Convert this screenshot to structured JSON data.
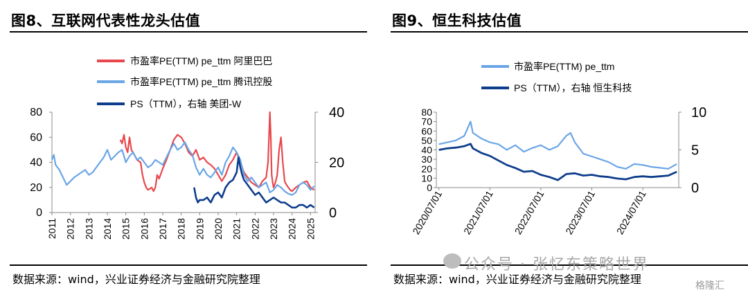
{
  "left": {
    "fig_title": "图8、互联网代表性龙头估值",
    "source": "数据来源：wind，兴业证券经济与金融研究院整理"
  },
  "right": {
    "fig_title": "图9、恒生科技估值",
    "source": "数据来源：wind，兴业证券经济与金融研究院整理"
  },
  "watermark": {
    "text": "公众号 · 张忆东策略世界",
    "logo": "格隆汇",
    "icon": "wechat-icon"
  },
  "chart_data": [
    {
      "type": "line",
      "title": "",
      "legend_placement": "top",
      "x_ticks": [
        "2011",
        "2012",
        "2013",
        "2014",
        "2015",
        "2016",
        "2017",
        "2018",
        "2019",
        "2020",
        "2021",
        "2022",
        "2023",
        "2024",
        "2025"
      ],
      "y_left": {
        "lim": [
          0,
          80
        ],
        "ticks": [
          0,
          20,
          40,
          60,
          80
        ]
      },
      "y_right": {
        "lim": [
          0,
          40
        ],
        "ticks": [
          0,
          20,
          40
        ]
      },
      "grid": false,
      "series": [
        {
          "name": "市盈率PE(TTM) pe_ttm 阿里巴巴",
          "axis": "left",
          "color": "#e8474c",
          "x": [
            2014.7,
            2014.8,
            2014.9,
            2015.0,
            2015.1,
            2015.2,
            2015.3,
            2015.5,
            2015.6,
            2015.8,
            2015.9,
            2016.0,
            2016.1,
            2016.2,
            2016.4,
            2016.5,
            2016.6,
            2016.7,
            2016.8,
            2017.0,
            2017.2,
            2017.4,
            2017.6,
            2017.8,
            2018.0,
            2018.2,
            2018.4,
            2018.6,
            2018.8,
            2019.0,
            2019.2,
            2019.4,
            2019.6,
            2019.8,
            2020.0,
            2020.2,
            2020.4,
            2020.6,
            2020.8,
            2021.0,
            2021.2,
            2021.4,
            2021.6,
            2021.8,
            2022.0,
            2022.2,
            2022.4,
            2022.6,
            2022.7,
            2022.8,
            2022.85,
            2022.9,
            2022.95,
            2023.0,
            2023.1,
            2023.2,
            2023.3,
            2023.4,
            2023.5,
            2023.6,
            2023.7,
            2023.8,
            2023.9,
            2024.0,
            2024.2,
            2024.4,
            2024.6,
            2024.8,
            2025.0,
            2025.2
          ],
          "values": [
            58,
            55,
            62,
            52,
            48,
            60,
            50,
            45,
            42,
            40,
            30,
            24,
            20,
            18,
            20,
            17,
            20,
            30,
            27,
            35,
            42,
            50,
            58,
            62,
            60,
            55,
            48,
            45,
            50,
            42,
            44,
            40,
            38,
            35,
            30,
            25,
            30,
            38,
            42,
            48,
            40,
            32,
            28,
            24,
            22,
            20,
            25,
            28,
            40,
            80,
            60,
            30,
            24,
            20,
            24,
            30,
            50,
            60,
            40,
            25,
            22,
            20,
            18,
            17,
            20,
            22,
            24,
            25,
            20,
            18
          ]
        },
        {
          "name": "市盈率PE(TTM) pe_ttm 腾讯控股",
          "axis": "left",
          "color": "#6aa5e6",
          "x": [
            2011.0,
            2011.1,
            2011.2,
            2011.4,
            2011.6,
            2011.8,
            2012.0,
            2012.2,
            2012.4,
            2012.6,
            2012.8,
            2013.0,
            2013.2,
            2013.4,
            2013.6,
            2013.8,
            2014.0,
            2014.2,
            2014.4,
            2014.6,
            2014.8,
            2015.0,
            2015.2,
            2015.4,
            2015.6,
            2015.8,
            2016.0,
            2016.2,
            2016.4,
            2016.6,
            2016.8,
            2017.0,
            2017.2,
            2017.4,
            2017.6,
            2017.8,
            2018.0,
            2018.2,
            2018.4,
            2018.6,
            2018.8,
            2019.0,
            2019.2,
            2019.4,
            2019.6,
            2019.8,
            2020.0,
            2020.2,
            2020.4,
            2020.6,
            2020.8,
            2021.0,
            2021.2,
            2021.4,
            2021.6,
            2021.8,
            2022.0,
            2022.2,
            2022.4,
            2022.6,
            2022.8,
            2023.0,
            2023.2,
            2023.4,
            2023.6,
            2023.8,
            2024.0,
            2024.2,
            2024.4,
            2024.6,
            2024.8,
            2025.0,
            2025.2
          ],
          "values": [
            42,
            46,
            38,
            34,
            28,
            22,
            25,
            28,
            30,
            32,
            34,
            30,
            32,
            36,
            40,
            44,
            50,
            42,
            45,
            48,
            50,
            40,
            45,
            48,
            42,
            44,
            40,
            36,
            38,
            42,
            40,
            38,
            44,
            50,
            55,
            50,
            52,
            56,
            50,
            46,
            36,
            30,
            35,
            30,
            28,
            32,
            36,
            30,
            40,
            45,
            52,
            48,
            42,
            30,
            25,
            28,
            24,
            20,
            22,
            24,
            16,
            18,
            22,
            20,
            17,
            15,
            14,
            16,
            22,
            24,
            22,
            18,
            21
          ]
        },
        {
          "name": "PS（TTM），右轴 美团-W",
          "axis": "right",
          "color": "#0e3d8c",
          "x": [
            2018.7,
            2018.8,
            2018.9,
            2019.0,
            2019.2,
            2019.4,
            2019.6,
            2019.8,
            2020.0,
            2020.2,
            2020.4,
            2020.6,
            2020.8,
            2021.0,
            2021.1,
            2021.2,
            2021.3,
            2021.4,
            2021.6,
            2021.8,
            2022.0,
            2022.2,
            2022.4,
            2022.6,
            2022.8,
            2023.0,
            2023.2,
            2023.4,
            2023.6,
            2023.8,
            2024.0,
            2024.2,
            2024.4,
            2024.6,
            2024.8,
            2025.0,
            2025.2
          ],
          "values": [
            10,
            6,
            4,
            5,
            5,
            6,
            4,
            7,
            8,
            6,
            10,
            12,
            13,
            16,
            22,
            18,
            15,
            13,
            11,
            9,
            7,
            8,
            6,
            4,
            5,
            6,
            5,
            4,
            4,
            3,
            2,
            2,
            3,
            3,
            2,
            3,
            2
          ]
        }
      ]
    },
    {
      "type": "line",
      "title": "",
      "legend_placement": "top",
      "x_ticks": [
        "2020/07/01",
        "2021/07/01",
        "2022/07/01",
        "2023/07/01",
        "2024/07/01"
      ],
      "y_left": {
        "lim": [
          0,
          80
        ],
        "ticks": [
          0,
          10,
          20,
          30,
          40,
          50,
          60,
          70,
          80
        ]
      },
      "y_right": {
        "lim": [
          0,
          10
        ],
        "ticks": [
          0,
          5,
          10
        ]
      },
      "grid": false,
      "series": [
        {
          "name": "市盈率PE(TTM) pe_ttm",
          "axis": "left",
          "color": "#6aa5e6",
          "x": [
            "2020-07-01",
            "2020-09-01",
            "2020-11-01",
            "2021-01-01",
            "2021-02-15",
            "2021-03-01",
            "2021-05-01",
            "2021-07-01",
            "2021-09-01",
            "2021-11-01",
            "2022-01-01",
            "2022-03-01",
            "2022-05-01",
            "2022-07-01",
            "2022-09-01",
            "2022-11-01",
            "2023-01-01",
            "2023-02-01",
            "2023-03-01",
            "2023-05-01",
            "2023-07-01",
            "2023-09-01",
            "2023-11-01",
            "2024-01-01",
            "2024-03-01",
            "2024-05-01",
            "2024-07-01",
            "2024-09-01",
            "2024-11-01",
            "2025-01-01",
            "2025-03-01"
          ],
          "values": [
            46,
            48,
            50,
            55,
            70,
            58,
            52,
            48,
            46,
            40,
            45,
            38,
            42,
            45,
            40,
            44,
            55,
            58,
            48,
            36,
            33,
            30,
            27,
            22,
            20,
            25,
            24,
            22,
            21,
            20,
            25
          ]
        },
        {
          "name": "PS（TTM），右轴 恒生科技",
          "axis": "right",
          "color": "#0e3d8c",
          "x": [
            "2020-07-01",
            "2020-09-01",
            "2020-11-01",
            "2021-01-01",
            "2021-02-15",
            "2021-03-01",
            "2021-05-01",
            "2021-07-01",
            "2021-09-01",
            "2021-11-01",
            "2022-01-01",
            "2022-03-01",
            "2022-05-01",
            "2022-07-01",
            "2022-09-01",
            "2022-11-01",
            "2023-01-01",
            "2023-03-01",
            "2023-05-01",
            "2023-07-01",
            "2023-09-01",
            "2023-11-01",
            "2024-01-01",
            "2024-03-01",
            "2024-05-01",
            "2024-07-01",
            "2024-09-01",
            "2024-11-01",
            "2025-01-01",
            "2025-03-01"
          ],
          "values": [
            5.0,
            5.2,
            5.3,
            5.5,
            5.8,
            5.2,
            4.6,
            4.2,
            3.6,
            3.0,
            2.6,
            2.1,
            2.2,
            1.7,
            1.4,
            1.0,
            1.8,
            1.9,
            1.6,
            1.7,
            1.5,
            1.4,
            1.2,
            1.1,
            1.4,
            1.5,
            1.4,
            1.5,
            1.6,
            2.1
          ]
        }
      ]
    }
  ]
}
